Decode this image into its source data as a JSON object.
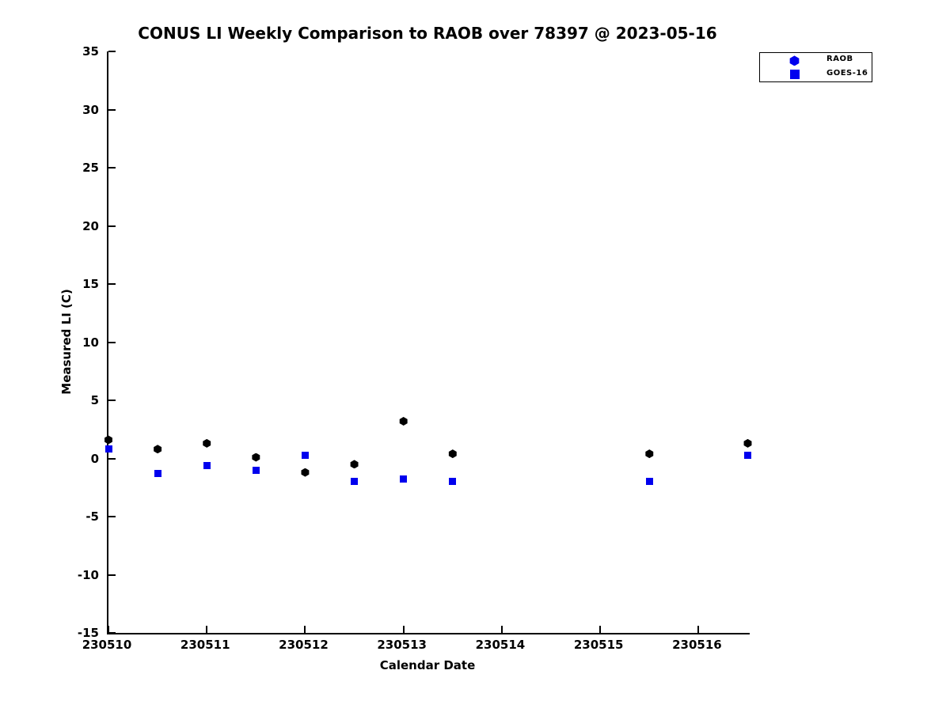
{
  "title": "CONUS LI Weekly Comparison to RAOB over 78397 @ 2023-05-16",
  "colors": {
    "raob_marker": "#000000",
    "goes16_marker": "#0000ee",
    "legend_marker": "#0000ee",
    "axis": "#000000",
    "background": "#ffffff"
  },
  "legend": {
    "items": [
      {
        "label": "RAOB",
        "marker": "hexagon-icon",
        "color": "#0000ee"
      },
      {
        "label": "GOES-16",
        "marker": "square-icon",
        "color": "#0000ee"
      }
    ]
  },
  "chart_data": {
    "type": "scatter",
    "title": "CONUS LI Weekly Comparison to RAOB over 78397 @ 2023-05-16",
    "xlabel": "Calendar Date",
    "ylabel": "Measured LI (C)",
    "xlim": [
      230510,
      230516.52
    ],
    "ylim": [
      -15,
      35
    ],
    "x_ticks": [
      230510,
      230511,
      230512,
      230513,
      230514,
      230515,
      230516
    ],
    "y_ticks": [
      -15,
      -10,
      -5,
      0,
      5,
      10,
      15,
      20,
      25,
      30,
      35
    ],
    "grid": false,
    "legend_position": "top-right",
    "series": [
      {
        "name": "RAOB",
        "marker": "hexagon",
        "color": "#000000",
        "points": [
          [
            230510.0,
            1.6
          ],
          [
            230510.5,
            0.8
          ],
          [
            230511.0,
            1.3
          ],
          [
            230511.5,
            0.1
          ],
          [
            230512.0,
            -1.2
          ],
          [
            230512.5,
            -0.5
          ],
          [
            230513.0,
            3.2
          ],
          [
            230513.5,
            0.4
          ],
          [
            230515.5,
            0.4
          ],
          [
            230516.5,
            1.3
          ]
        ]
      },
      {
        "name": "GOES-16",
        "marker": "square",
        "color": "#0000ee",
        "points": [
          [
            230510.0,
            0.8
          ],
          [
            230510.5,
            -1.3
          ],
          [
            230511.0,
            -0.6
          ],
          [
            230511.5,
            -1.0
          ],
          [
            230512.0,
            0.3
          ],
          [
            230512.5,
            -2.0
          ],
          [
            230513.0,
            -1.8
          ],
          [
            230513.5,
            -2.0
          ],
          [
            230515.5,
            -2.0
          ],
          [
            230516.5,
            0.3
          ]
        ]
      }
    ]
  }
}
